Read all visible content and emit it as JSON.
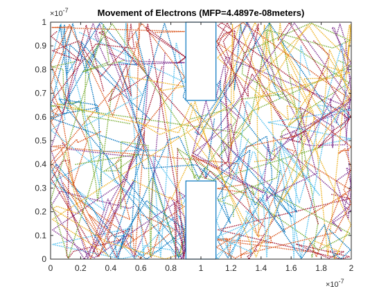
{
  "chart_data": {
    "type": "scatter",
    "title": "Movement of Electrons (MFP=4.4897e-08meters)",
    "xlabel": "",
    "ylabel": "",
    "xlim": [
      0,
      2e-07
    ],
    "ylim": [
      0,
      1e-07
    ],
    "x_ticks": [
      "0",
      "0.2",
      "0.4",
      "0.6",
      "0.8",
      "1",
      "1.2",
      "1.4",
      "1.6",
      "1.8",
      "2"
    ],
    "y_ticks": [
      "0",
      "0.1",
      "0.2",
      "0.3",
      "0.4",
      "0.5",
      "0.6",
      "0.7",
      "0.8",
      "0.9",
      "1"
    ],
    "x_exponent": "×10",
    "x_exponent_power": "-7",
    "y_exponent": "×10",
    "y_exponent_power": "-7",
    "grid": false,
    "legend": "none",
    "marker": "dotted trajectories",
    "series_colors": [
      "#0072bd",
      "#d95319",
      "#edb120",
      "#7e2f8e",
      "#77ac30",
      "#4dbeee",
      "#a2142f"
    ],
    "boxes": [
      {
        "name": "bottleneck-box-top",
        "x": [
          9e-08,
          1.1e-07
        ],
        "y": [
          6.7e-08,
          1e-07
        ],
        "color": "#0072bd"
      },
      {
        "name": "bottleneck-box-bottom",
        "x": [
          9e-08,
          1.1e-07
        ],
        "y": [
          0,
          3.3e-08
        ],
        "color": "#0072bd"
      }
    ],
    "electron_count": 60
  }
}
